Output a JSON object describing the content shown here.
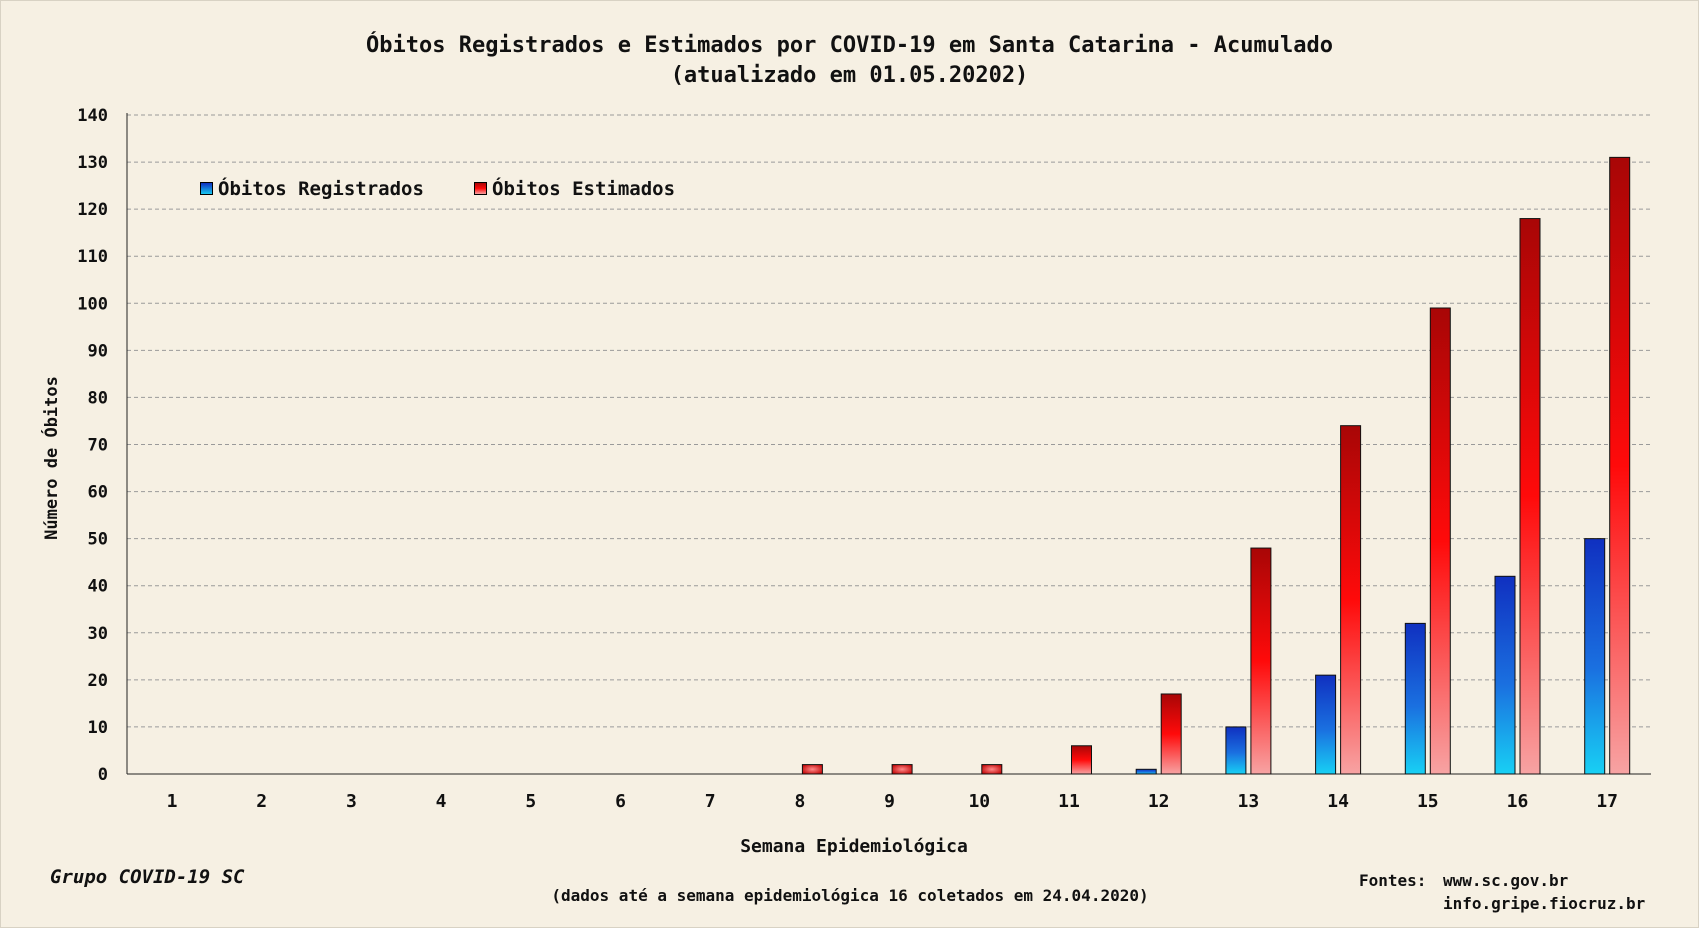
{
  "chart_data": {
    "type": "bar",
    "title": "Óbitos Registrados e Estimados por COVID-19 em Santa Catarina - Acumulado",
    "subtitle": "(atualizado em 01.05.20202)",
    "xlabel": "Semana Epidemiológica",
    "ylabel": "Número de Óbitos",
    "ylim": [
      0,
      140
    ],
    "yticks": [
      0,
      10,
      20,
      30,
      40,
      50,
      60,
      70,
      80,
      90,
      100,
      110,
      120,
      130,
      140
    ],
    "categories": [
      "1",
      "2",
      "3",
      "4",
      "5",
      "6",
      "7",
      "8",
      "9",
      "10",
      "11",
      "12",
      "13",
      "14",
      "15",
      "16",
      "17"
    ],
    "series": [
      {
        "name": "Óbitos Registrados",
        "color": "#1a4fd6",
        "values": [
          0,
          0,
          0,
          0,
          0,
          0,
          0,
          0,
          0,
          0,
          0,
          1,
          10,
          21,
          32,
          42,
          50
        ]
      },
      {
        "name": "Óbitos Estimados",
        "color": "#e01010",
        "values": [
          0,
          0,
          0,
          0,
          0,
          0,
          0,
          2,
          2,
          2,
          6,
          17,
          48,
          74,
          99,
          118,
          131
        ]
      }
    ],
    "grid": true,
    "legend_position": "top-left"
  },
  "credit": "Grupo COVID-19 SC",
  "footnote": "(dados até a semana epidemiológica 16 coletados em 24.04.2020)",
  "sources": {
    "label": "Fontes:",
    "items": [
      "www.sc.gov.br",
      "info.gripe.fiocruz.br"
    ]
  },
  "colors": {
    "background": "#f6f0e3",
    "registered_top": "#1030c0",
    "registered_bottom": "#18c8f0",
    "estimated_top": "#b00808",
    "estimated_mid": "#ff0a0a",
    "estimated_bottom": "#f59a9a"
  }
}
